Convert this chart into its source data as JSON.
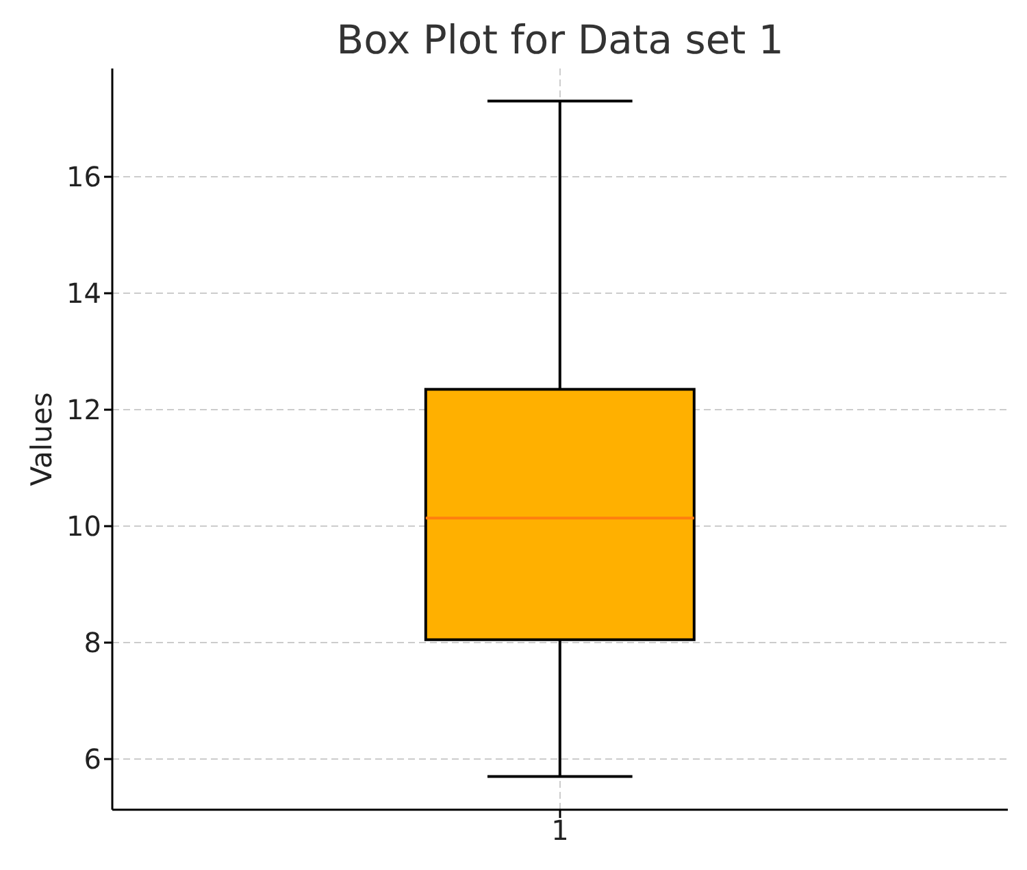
{
  "chart_data": {
    "type": "box",
    "title": "Box Plot for Data set 1",
    "ylabel": "Values",
    "categories": [
      "1"
    ],
    "series": [
      {
        "color": "#ffb000",
        "boxes": [
          {
            "low": 5.7,
            "q1": 8.05,
            "median": 10.14,
            "q3": 12.35,
            "high": 17.3
          }
        ]
      }
    ],
    "ylim": [
      5.13,
      17.86
    ],
    "yticks": [
      6,
      8,
      10,
      12,
      14,
      16
    ],
    "grid": true
  }
}
